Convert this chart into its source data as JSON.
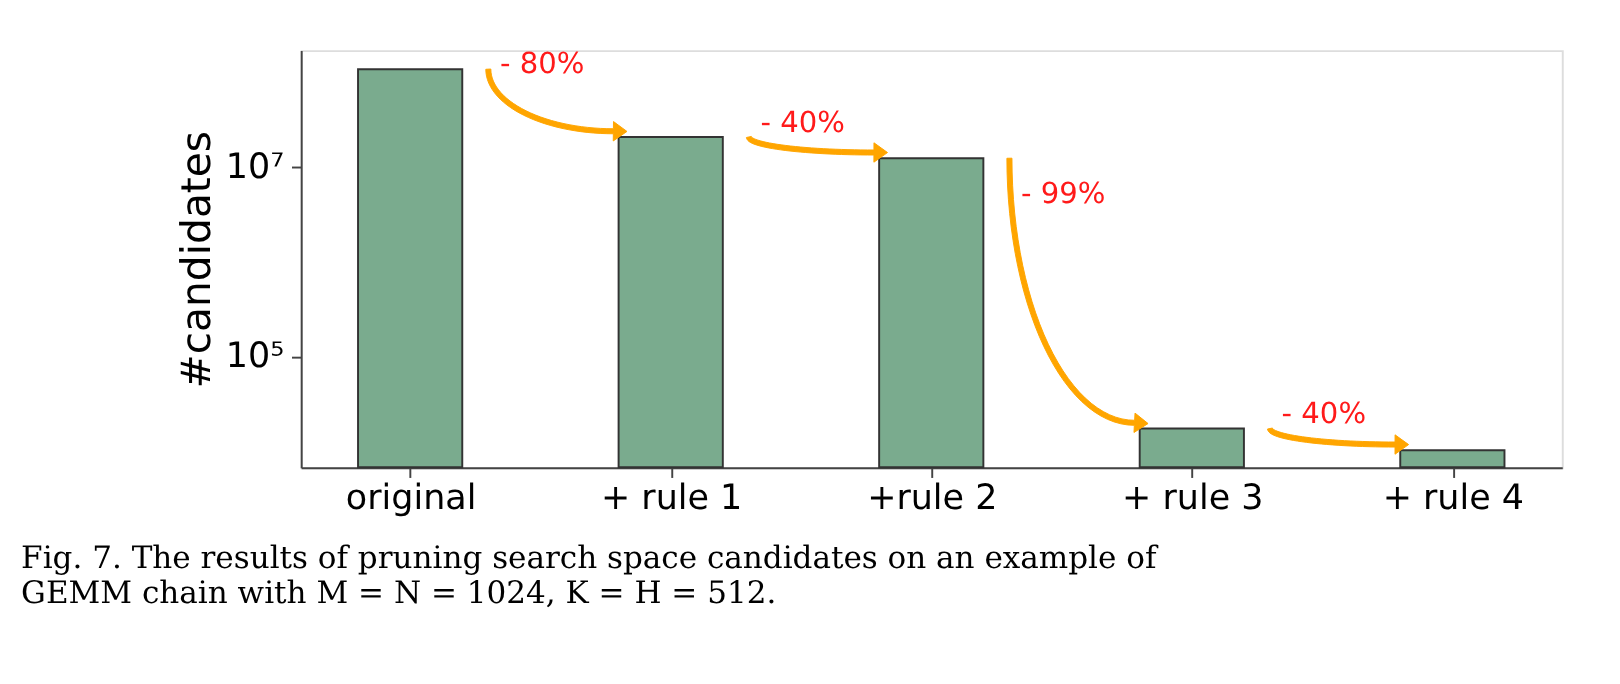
{
  "chart_data": {
    "type": "bar",
    "categories": [
      "original",
      "+ rule 1",
      "+rule 2",
      "+ rule 3",
      "+ rule 4"
    ],
    "values": [
      110000000.0,
      21000000.0,
      12500000.0,
      17000.0,
      10000.0
    ],
    "color": "#7aab8e",
    "ylabel": "#candidates",
    "log": true,
    "ylim": [
      6600,
      175000000
    ],
    "yticks": [
      {
        "value": 100000,
        "label": "10⁵"
      },
      {
        "value": 10000000,
        "label": "10⁷"
      }
    ],
    "grid": false,
    "annotations": [
      "- 80%",
      "- 40%",
      "- 99%",
      "- 40%",
      "Fig. 7.  The results of pruning search space candidates on an example of GEMM chain with M = N = 1024, K = H = 512."
    ]
  }
}
